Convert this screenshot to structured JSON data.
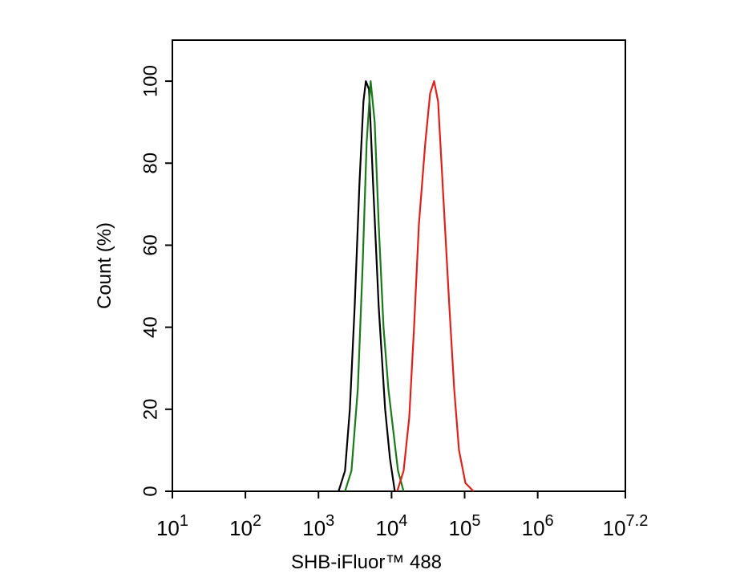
{
  "chart_data": {
    "type": "line",
    "xlabel": "SHB-iFluor™ 488",
    "ylabel": "Count  (%)",
    "xscale": "log",
    "xlim": [
      10,
      15848931.92
    ],
    "ylim": [
      0,
      110
    ],
    "xticks": [
      {
        "value": 10,
        "label": "10",
        "exponent": "1"
      },
      {
        "value": 100,
        "label": "10",
        "exponent": "2"
      },
      {
        "value": 1000,
        "label": "10",
        "exponent": "3"
      },
      {
        "value": 10000,
        "label": "10",
        "exponent": "4"
      },
      {
        "value": 100000,
        "label": "10",
        "exponent": "5"
      },
      {
        "value": 1000000,
        "label": "10",
        "exponent": "6"
      },
      {
        "value": 15848931.92,
        "label": "10",
        "exponent": "7.2"
      }
    ],
    "yticks": [
      0,
      20,
      40,
      60,
      80,
      100
    ],
    "series": [
      {
        "color": "#000000",
        "x": [
          1884,
          2307,
          2685,
          3126,
          3634,
          4121,
          4446,
          4920,
          5585,
          6668,
          8166,
          9506,
          11066
        ],
        "values": [
          0,
          5,
          20,
          45,
          75,
          95,
          100,
          98,
          75,
          45,
          20,
          8,
          0
        ]
      },
      {
        "color": "#1a7a1a",
        "x": [
          2307,
          2825,
          3453,
          4018,
          4560,
          5176,
          5875,
          6668,
          7762,
          9036,
          10517,
          12243,
          14621
        ],
        "values": [
          0,
          5,
          25,
          55,
          85,
          100,
          90,
          65,
          40,
          25,
          15,
          5,
          0
        ]
      },
      {
        "color": "#e0201b",
        "x": [
          11940,
          14621,
          17458,
          20318,
          23646,
          28968,
          33690,
          38200,
          43350,
          51760,
          61800,
          71940,
          83750,
          102600,
          132200
        ],
        "values": [
          0,
          5,
          18,
          40,
          65,
          85,
          97,
          100,
          95,
          70,
          45,
          25,
          10,
          2,
          0
        ]
      }
    ]
  }
}
